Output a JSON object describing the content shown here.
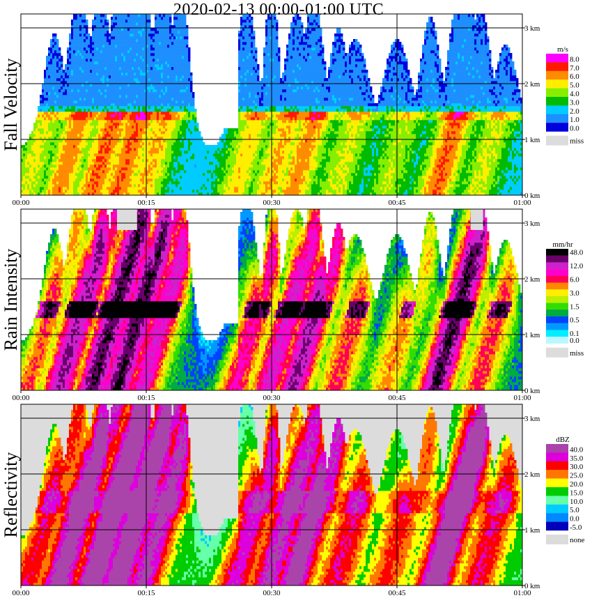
{
  "title": "2020-02-13   00:00-01:00 UTC",
  "colors": {
    "axis": "#000000",
    "missing": "#dcdcdc",
    "background": "#ffffff"
  },
  "chart_data": [
    {
      "type": "heatmap",
      "panel_title": "Fall Velocity",
      "x_ticks": [
        "00:00",
        "00:15",
        "00:30",
        "00:45",
        "01:00"
      ],
      "y_ticks": [
        "0 km",
        "1 km",
        "2 km",
        "3 km"
      ],
      "xlim": [
        "00:00",
        "01:00"
      ],
      "ylim_km": [
        0,
        3.1
      ],
      "grid": true,
      "legend": {
        "unit": "m/s",
        "items": [
          {
            "label": "8.0",
            "color": "#ff00ff"
          },
          {
            "label": "7.0",
            "color": "#ff1a00"
          },
          {
            "label": "6.0",
            "color": "#ff8c00"
          },
          {
            "label": "5.0",
            "color": "#ffee00"
          },
          {
            "label": "4.0",
            "color": "#88ee00"
          },
          {
            "label": "3.0",
            "color": "#00bb00"
          },
          {
            "label": "2.0",
            "color": "#00ccff"
          },
          {
            "label": "1.0",
            "color": "#1e8fff"
          },
          {
            "label": "0.0",
            "color": "#0000dd"
          }
        ],
        "missing_label": "miss"
      }
    },
    {
      "type": "heatmap",
      "panel_title": "Rain Intensity",
      "x_ticks": [
        "00:00",
        "00:15",
        "00:30",
        "00:45",
        "01:00"
      ],
      "y_ticks": [
        "0 km",
        "1 km",
        "2 km",
        "3 km"
      ],
      "xlim": [
        "00:00",
        "01:00"
      ],
      "ylim_km": [
        0,
        3.1
      ],
      "grid": true,
      "legend": {
        "unit": "mm/hr",
        "items": [
          {
            "label": "48.0",
            "color": "#000000"
          },
          {
            "label": "",
            "color": "#6a006a"
          },
          {
            "label": "12.0",
            "color": "#cc22cc"
          },
          {
            "label": "",
            "color": "#ff00cc"
          },
          {
            "label": "6.0",
            "color": "#ff0055"
          },
          {
            "label": "",
            "color": "#ff8800"
          },
          {
            "label": "3.0",
            "color": "#ffee00"
          },
          {
            "label": "",
            "color": "#bbee00"
          },
          {
            "label": "1.5",
            "color": "#33dd00"
          },
          {
            "label": "",
            "color": "#00aa44"
          },
          {
            "label": "0.5",
            "color": "#0044ff"
          },
          {
            "label": "",
            "color": "#0099ff"
          },
          {
            "label": "0.1",
            "color": "#00eeff"
          },
          {
            "label": "0.0",
            "color": "#bbf7ff"
          }
        ],
        "missing_label": "miss"
      }
    },
    {
      "type": "heatmap",
      "panel_title": "Reflectivity",
      "x_ticks": [
        "00:00",
        "00:15",
        "00:30",
        "00:45",
        "01:00"
      ],
      "y_ticks": [
        "0 km",
        "1 km",
        "2 km",
        "3 km"
      ],
      "xlim": [
        "00:00",
        "01:00"
      ],
      "ylim_km": [
        0,
        3.1
      ],
      "grid": true,
      "legend": {
        "unit": "dBZ",
        "items": [
          {
            "label": "40.0",
            "color": "#aa44aa"
          },
          {
            "label": "35.0",
            "color": "#dd00dd"
          },
          {
            "label": "30.0",
            "color": "#ff0000"
          },
          {
            "label": "25.0",
            "color": "#ff7700"
          },
          {
            "label": "20.0",
            "color": "#ffff00"
          },
          {
            "label": "15.0",
            "color": "#00cc00"
          },
          {
            "label": "10.0",
            "color": "#66ffaa"
          },
          {
            "label": "5.0",
            "color": "#00ccff"
          },
          {
            "label": "0.0",
            "color": "#0088ff"
          },
          {
            "label": "-5.0",
            "color": "#0000bb"
          }
        ],
        "missing_label": "none"
      }
    }
  ]
}
